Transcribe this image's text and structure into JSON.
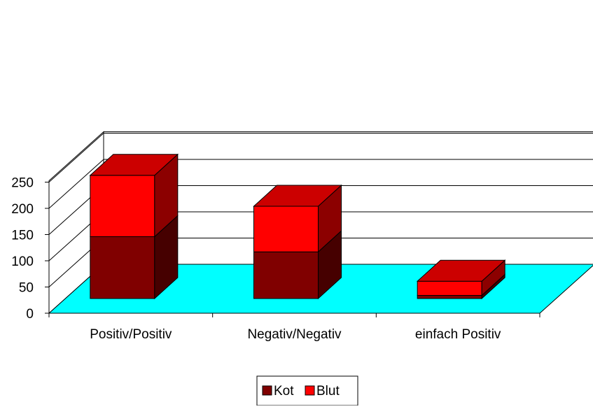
{
  "chart_data": {
    "type": "bar",
    "stacked": true,
    "three_d": true,
    "categories": [
      "Positiv/Positiv",
      "Negativ/Negativ",
      "einfach Positiv"
    ],
    "series": [
      {
        "name": "Kot",
        "values": [
          118,
          89,
          6
        ],
        "color": "#800000"
      },
      {
        "name": "Blut",
        "values": [
          117,
          87,
          27
        ],
        "color": "#ff0000"
      }
    ],
    "ylim": [
      0,
      250
    ],
    "yticks": [
      "0",
      "50",
      "100",
      "150",
      "200",
      "250"
    ],
    "grid": true,
    "legend_position": "bottom",
    "floor_color": "#00ffff"
  }
}
